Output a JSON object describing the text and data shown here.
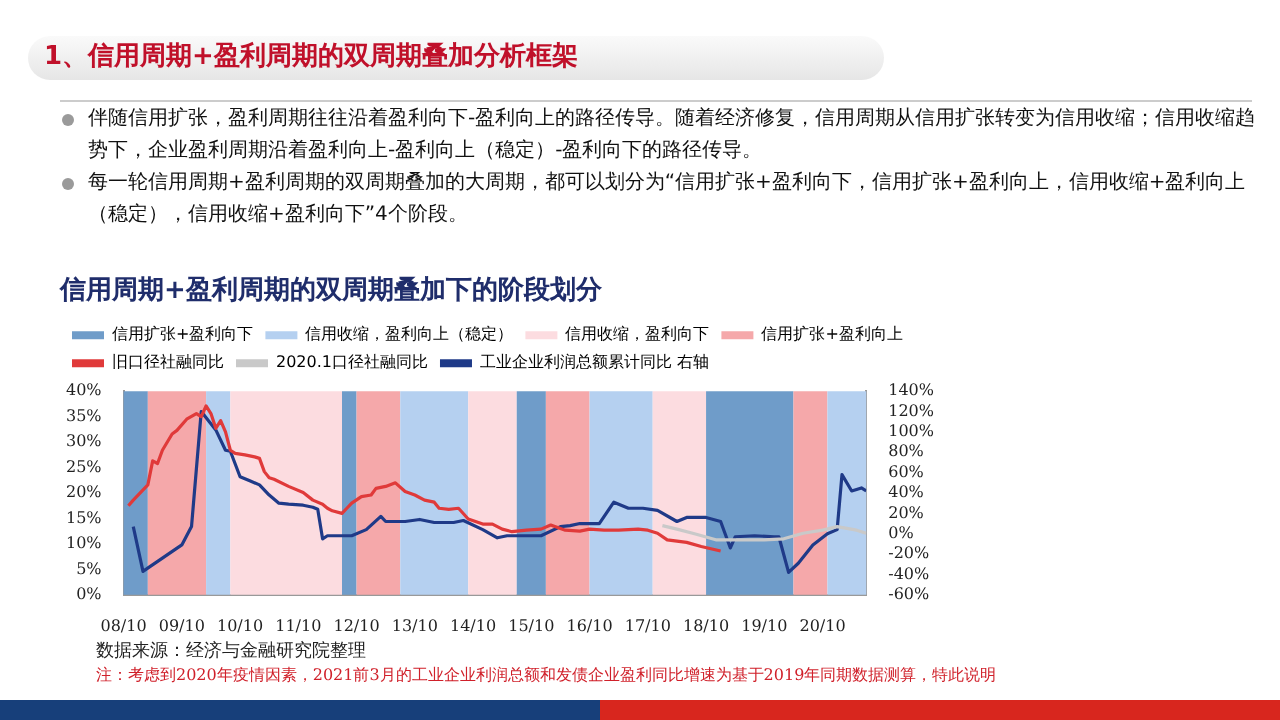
{
  "chart_data": {
    "type": "line",
    "title": "信用周期+盈利周期的双周期叠加下的阶段划分",
    "annotations": [
      "1、信用周期+盈利周期的双周期叠加分析框架",
      "伴随信用扩张，盈利周期往往沿着盈利向下-盈利向上的路径传导。随着经济修复，信用周期从信用扩张转变为信用收缩；信用收缩趋势下，企业盈利周期沿着盈利向上-盈利向上（稳定）-盈利向下的路径传导。",
      "每一轮信用周期+盈利周期的双周期叠加的大周期，都可以划分为“信用扩张+盈利向下，信用扩张+盈利向上，信用收缩+盈利向上（稳定），信用收缩+盈利向下”4个阶段。",
      "数据来源：经济与金融研究院整理",
      "注：考虑到2020年疫情因素，2021前3月的工业企业利润总额和发债企业盈利同比增速为基于2019年同期数据测算，特此说明"
    ],
    "xlim": [
      "2008-10",
      "2021-07"
    ],
    "xticks": [
      {
        "value": "2008-10",
        "label": "08/10"
      },
      {
        "value": "2009-10",
        "label": "09/10"
      },
      {
        "value": "2010-10",
        "label": "10/10"
      },
      {
        "value": "2011-10",
        "label": "11/10"
      },
      {
        "value": "2012-10",
        "label": "12/10"
      },
      {
        "value": "2013-10",
        "label": "13/10"
      },
      {
        "value": "2014-10",
        "label": "14/10"
      },
      {
        "value": "2015-10",
        "label": "15/10"
      },
      {
        "value": "2016-10",
        "label": "16/10"
      },
      {
        "value": "2017-10",
        "label": "17/10"
      },
      {
        "value": "2018-10",
        "label": "18/10"
      },
      {
        "value": "2019-10",
        "label": "19/10"
      },
      {
        "value": "2020-10",
        "label": "20/10"
      }
    ],
    "ylim": [
      0,
      40
    ],
    "yticks": [
      {
        "value": 0,
        "label": "0%"
      },
      {
        "value": 5,
        "label": "5%"
      },
      {
        "value": 10,
        "label": "10%"
      },
      {
        "value": 15,
        "label": "15%"
      },
      {
        "value": 20,
        "label": "20%"
      },
      {
        "value": 25,
        "label": "25%"
      },
      {
        "value": 30,
        "label": "30%"
      },
      {
        "value": 35,
        "label": "35%"
      },
      {
        "value": 40,
        "label": "40%"
      }
    ],
    "y2lim": [
      -60,
      140
    ],
    "y2ticks": [
      {
        "value": -60,
        "label": "-60%"
      },
      {
        "value": -40,
        "label": "-40%"
      },
      {
        "value": -20,
        "label": "-20%"
      },
      {
        "value": 0,
        "label": "0%"
      },
      {
        "value": 20,
        "label": "20%"
      },
      {
        "value": 40,
        "label": "40%"
      },
      {
        "value": 60,
        "label": "60%"
      },
      {
        "value": 80,
        "label": "80%"
      },
      {
        "value": 100,
        "label": "100%"
      },
      {
        "value": 120,
        "label": "120%"
      },
      {
        "value": 140,
        "label": "140%"
      }
    ],
    "grid": false,
    "legend": "top",
    "marker": "none",
    "line_style": "solid",
    "bands": [
      {
        "axis": "x",
        "from": "2008-10",
        "to": "2009-03",
        "label": "信用扩张+盈利向下",
        "color": "#6f9cc9"
      },
      {
        "axis": "x",
        "from": "2009-03",
        "to": "2010-03",
        "color": "#f5a8aa"
      },
      {
        "axis": "x",
        "from": "2010-03",
        "to": "2010-08",
        "label": "信用收缩，盈利向上（稳定）",
        "color": "#b5d0f0"
      },
      {
        "axis": "x",
        "from": "2010-08",
        "to": "2012-07",
        "label": "信用收缩，盈利向下",
        "color": "#fcdce0"
      },
      {
        "axis": "x",
        "from": "2012-07",
        "to": "2012-10",
        "color": "#6f9cc9"
      },
      {
        "axis": "x",
        "from": "2012-10",
        "to": "2013-07",
        "label": "信用扩张+盈利向上",
        "color": "#f5a8aa"
      },
      {
        "axis": "x",
        "from": "2013-07",
        "to": "2014-09",
        "color": "#b5d0f0"
      },
      {
        "axis": "x",
        "from": "2014-09",
        "to": "2015-07",
        "color": "#fcdce0"
      },
      {
        "axis": "x",
        "from": "2015-07",
        "to": "2016-01",
        "color": "#6f9cc9"
      },
      {
        "axis": "x",
        "from": "2016-01",
        "to": "2016-10",
        "color": "#f5a8aa"
      },
      {
        "axis": "x",
        "from": "2016-10",
        "to": "2017-11",
        "color": "#b5d0f0"
      },
      {
        "axis": "x",
        "from": "2017-11",
        "to": "2018-10",
        "color": "#fcdce0"
      },
      {
        "axis": "x",
        "from": "2018-10",
        "to": "2020-04",
        "color": "#6f9cc9"
      },
      {
        "axis": "x",
        "from": "2020-04",
        "to": "2020-11",
        "color": "#f5a8aa"
      },
      {
        "axis": "x",
        "from": "2020-11",
        "to": "2021-07",
        "color": "#b5d0f0"
      }
    ],
    "series": [
      {
        "name": "旧口径社融同比",
        "color": "#e03a3a",
        "x": [
          "2008-11",
          "2008-12",
          "2009-03",
          "2009-04",
          "2009-05",
          "2009-06",
          "2009-08",
          "2009-09",
          "2009-11",
          "2010-01",
          "2010-02",
          "2010-03",
          "2010-04",
          "2010-05",
          "2010-06",
          "2010-07",
          "2010-08",
          "2010-09",
          "2010-11",
          "2011-01",
          "2011-02",
          "2011-03",
          "2011-04",
          "2011-05",
          "2011-08",
          "2011-11",
          "2012-01",
          "2012-03",
          "2012-04",
          "2012-05",
          "2012-07",
          "2012-08",
          "2012-09",
          "2012-11",
          "2013-01",
          "2013-02",
          "2013-04",
          "2013-06",
          "2013-08",
          "2013-10",
          "2013-12",
          "2014-02",
          "2014-03",
          "2014-05",
          "2014-07",
          "2014-09",
          "2014-12",
          "2015-02",
          "2015-04",
          "2015-06",
          "2015-09",
          "2015-12",
          "2016-02",
          "2016-05",
          "2016-08",
          "2016-10",
          "2017-01",
          "2017-04",
          "2017-08",
          "2017-10",
          "2017-12",
          "2018-02",
          "2018-06",
          "2018-09",
          "2019-01"
        ],
        "values": [
          17.5,
          18.6,
          21.6,
          26.3,
          25.8,
          28.4,
          31.6,
          32.3,
          34.5,
          35.6,
          35,
          37.1,
          35.6,
          32.7,
          34.2,
          32,
          28.4,
          27.8,
          27.5,
          27.1,
          26.8,
          24.2,
          23,
          22.7,
          21.3,
          20.1,
          18.6,
          17.8,
          17,
          16.5,
          16,
          17,
          18,
          19.3,
          19.6,
          20.9,
          21.3,
          22,
          20.3,
          19.6,
          18.6,
          18.2,
          17,
          16.8,
          17,
          14.9,
          13.9,
          13.9,
          12.9,
          12.4,
          12.7,
          12.9,
          13.7,
          12.7,
          12.5,
          12.9,
          12.7,
          12.7,
          12.9,
          12.7,
          12.1,
          10.8,
          10.3,
          9.5,
          8.6
        ]
      },
      {
        "name": "2020.1口径社融同比",
        "color": "#c9c9c9",
        "x": [
          "2018-01",
          "2018-04",
          "2018-08",
          "2018-12",
          "2019-05",
          "2019-10",
          "2020-02",
          "2020-06",
          "2020-10",
          "2021-01",
          "2021-05",
          "2021-07"
        ],
        "values": [
          13.6,
          12.9,
          11.9,
          10.8,
          10.8,
          10.8,
          11,
          12.1,
          12.7,
          13.4,
          12.7,
          12.1
        ]
      },
      {
        "name": "工业企业利润总额累计同比 右轴",
        "axis": "y2",
        "color": "#1f3a88",
        "x": [
          "2008-12",
          "2009-02",
          "2009-06",
          "2009-10",
          "2009-12",
          "2010-02",
          "2010-05",
          "2010-07",
          "2010-08",
          "2010-10",
          "2010-12",
          "2011-02",
          "2011-04",
          "2011-06",
          "2011-08",
          "2011-11",
          "2012-01",
          "2012-02",
          "2012-03",
          "2012-04",
          "2012-09",
          "2012-12",
          "2013-03",
          "2013-04",
          "2013-08",
          "2013-11",
          "2014-02",
          "2014-06",
          "2014-08",
          "2014-12",
          "2015-03",
          "2015-05",
          "2015-08",
          "2015-12",
          "2016-04",
          "2016-06",
          "2016-08",
          "2016-12",
          "2017-03",
          "2017-06",
          "2017-09",
          "2017-12",
          "2018-04",
          "2018-06",
          "2018-10",
          "2019-01",
          "2019-03",
          "2019-04",
          "2019-08",
          "2019-12",
          "2020-01",
          "2020-03",
          "2020-05",
          "2020-08",
          "2020-11",
          "2021-01",
          "2021-02",
          "2021-04",
          "2021-06",
          "2021-07"
        ],
        "values": [
          7,
          -37,
          -24,
          -11,
          7,
          120,
          102,
          82,
          81,
          56,
          52,
          48,
          38,
          30,
          29,
          28,
          26,
          24,
          -5,
          -2,
          -2,
          4,
          17,
          12,
          12,
          14,
          11,
          11,
          13,
          4,
          -4,
          -2,
          -2,
          -2,
          7,
          8,
          10,
          10,
          31,
          25,
          25,
          23,
          12,
          16,
          16,
          12,
          -14,
          -3,
          -2,
          -3,
          -3,
          -38,
          -29,
          -11,
          0,
          4,
          58,
          42,
          45,
          42
        ]
      }
    ]
  }
}
